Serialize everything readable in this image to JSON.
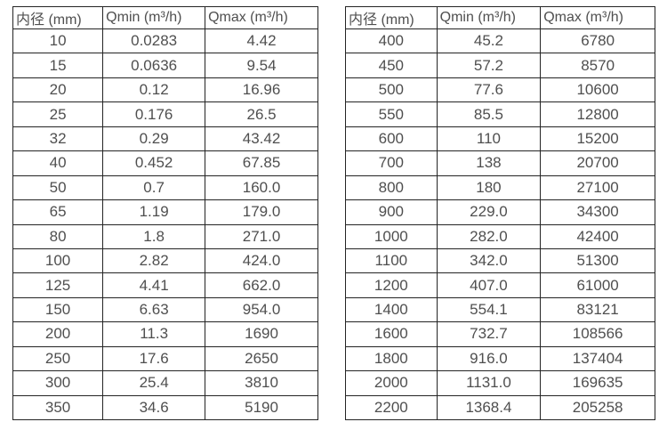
{
  "page": {
    "background_color": "#ffffff",
    "text_color": "#4f4f4f",
    "border_color": "#242424"
  },
  "tables": [
    {
      "name": "flow-spec-small-diameters",
      "headers": [
        "内径 (mm)",
        "Qmin (m³/h)",
        "Qmax (m³/h)"
      ],
      "rows": [
        [
          "10",
          "0.0283",
          "4.42"
        ],
        [
          "15",
          "0.0636",
          "9.54"
        ],
        [
          "20",
          "0.12",
          "16.96"
        ],
        [
          "25",
          "0.176",
          "26.5"
        ],
        [
          "32",
          "0.29",
          "43.42"
        ],
        [
          "40",
          "0.452",
          "67.85"
        ],
        [
          "50",
          "0.7",
          "160.0"
        ],
        [
          "65",
          "1.19",
          "179.0"
        ],
        [
          "80",
          "1.8",
          "271.0"
        ],
        [
          "100",
          "2.82",
          "424.0"
        ],
        [
          "125",
          "4.41",
          "662.0"
        ],
        [
          "150",
          "6.63",
          "954.0"
        ],
        [
          "200",
          "11.3",
          "1690"
        ],
        [
          "250",
          "17.6",
          "2650"
        ],
        [
          "300",
          "25.4",
          "3810"
        ],
        [
          "350",
          "34.6",
          "5190"
        ]
      ]
    },
    {
      "name": "flow-spec-large-diameters",
      "headers": [
        "内径 (mm)",
        "Qmin (m³/h)",
        "Qmax (m³/h)"
      ],
      "rows": [
        [
          "400",
          "45.2",
          "6780"
        ],
        [
          "450",
          "57.2",
          "8570"
        ],
        [
          "500",
          "77.6",
          "10600"
        ],
        [
          "550",
          "85.5",
          "12800"
        ],
        [
          "600",
          "110",
          "15200"
        ],
        [
          "700",
          "138",
          "20700"
        ],
        [
          "800",
          "180",
          "27100"
        ],
        [
          "900",
          "229.0",
          "34300"
        ],
        [
          "1000",
          "282.0",
          "42400"
        ],
        [
          "1100",
          "342.0",
          "51300"
        ],
        [
          "1200",
          "407.0",
          "61000"
        ],
        [
          "1400",
          "554.1",
          "83121"
        ],
        [
          "1600",
          "732.7",
          "108566"
        ],
        [
          "1800",
          "916.0",
          "137404"
        ],
        [
          "2000",
          "1131.0",
          "169635"
        ],
        [
          "2200",
          "1368.4",
          "205258"
        ]
      ]
    }
  ]
}
